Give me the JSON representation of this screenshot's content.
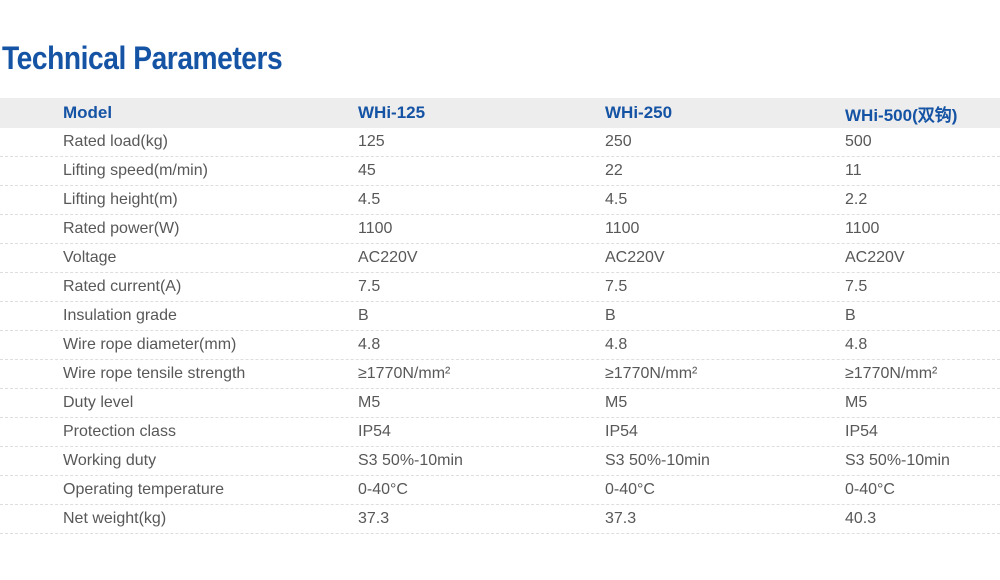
{
  "title": "Technical Parameters",
  "colors": {
    "accent_blue": "#1553A4",
    "header_bg": "#EDEDED",
    "body_text": "#585858",
    "divider": "#DEDEDE"
  },
  "table": {
    "columns": [
      "Model",
      "WHi-125",
      "WHi-250",
      "WHi-500(双钩)"
    ],
    "rows": [
      {
        "label": "Rated load(kg)",
        "values": [
          "125",
          "250",
          "500"
        ]
      },
      {
        "label": "Lifting speed(m/min)",
        "values": [
          "45",
          "22",
          "11"
        ]
      },
      {
        "label": "Lifting height(m)",
        "values": [
          "4.5",
          "4.5",
          "2.2"
        ]
      },
      {
        "label": "Rated power(W)",
        "values": [
          "1100",
          "1100",
          "1100"
        ]
      },
      {
        "label": "Voltage",
        "values": [
          "AC220V",
          "AC220V",
          "AC220V"
        ]
      },
      {
        "label": "Rated current(A)",
        "values": [
          "7.5",
          "7.5",
          "7.5"
        ]
      },
      {
        "label": "Insulation grade",
        "values": [
          "B",
          "B",
          "B"
        ]
      },
      {
        "label": "Wire rope diameter(mm)",
        "values": [
          "4.8",
          "4.8",
          "4.8"
        ]
      },
      {
        "label": "Wire rope tensile strength",
        "values": [
          "≥1770N/mm²",
          "≥1770N/mm²",
          "≥1770N/mm²"
        ]
      },
      {
        "label": "Duty level",
        "values": [
          "M5",
          "M5",
          "M5"
        ]
      },
      {
        "label": "Protection class",
        "values": [
          "IP54",
          "IP54",
          "IP54"
        ]
      },
      {
        "label": "Working duty",
        "values": [
          "S3 50%-10min",
          "S3 50%-10min",
          "S3 50%-10min"
        ]
      },
      {
        "label": "Operating temperature",
        "values": [
          "0-40°C",
          "0-40°C",
          "0-40°C"
        ]
      },
      {
        "label": "Net weight(kg)",
        "values": [
          "37.3",
          "37.3",
          "40.3"
        ]
      }
    ]
  }
}
